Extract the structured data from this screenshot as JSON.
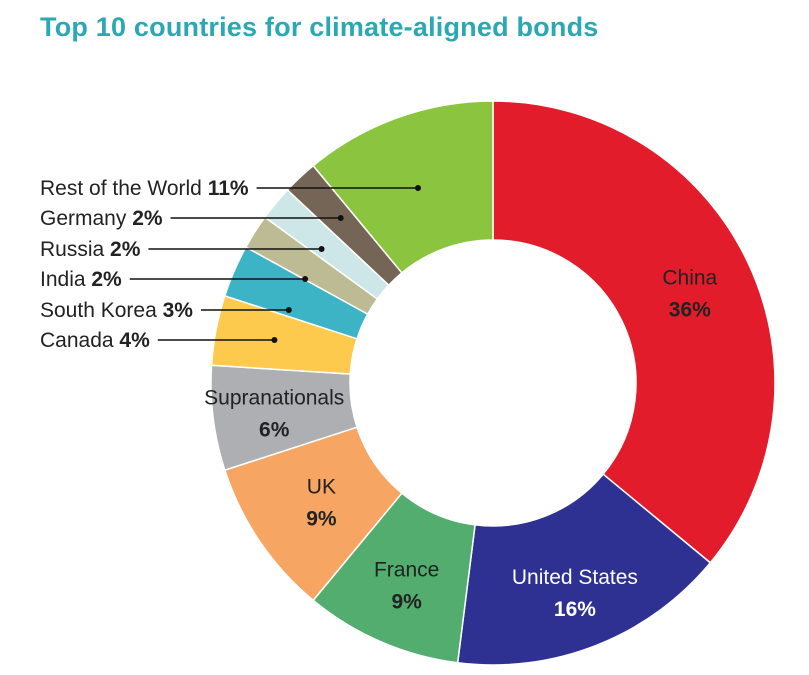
{
  "title": "Top 10 countries for climate-aligned bonds",
  "chart_data": {
    "type": "pie",
    "donut": true,
    "categories": [
      "China",
      "United States",
      "France",
      "UK",
      "Supranationals",
      "Canada",
      "South Korea",
      "India",
      "Russia",
      "Germany",
      "Rest of the World"
    ],
    "values": [
      36,
      16,
      9,
      9,
      6,
      4,
      3,
      2,
      2,
      2,
      11
    ],
    "labels": [
      "36%",
      "16%",
      "9%",
      "9%",
      "6%",
      "4%",
      "3%",
      "2%",
      "2%",
      "2%",
      "11%"
    ],
    "colors": [
      "#e21c2a",
      "#2e3192",
      "#52ad6f",
      "#f7a563",
      "#aeafb2",
      "#fdca4e",
      "#3cb4c6",
      "#bdbb93",
      "#cde7e8",
      "#756556",
      "#8bc43f"
    ]
  }
}
